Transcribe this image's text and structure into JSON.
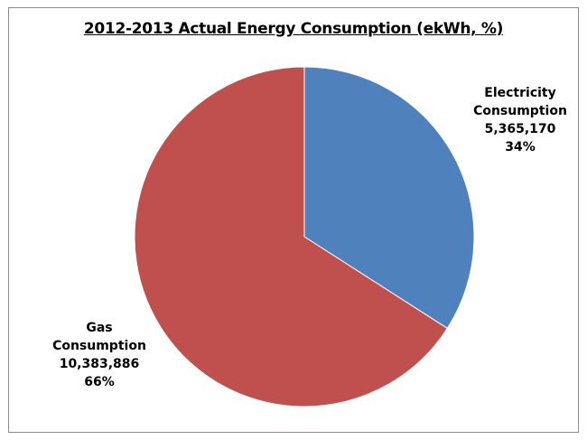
{
  "chart_data": {
    "type": "pie",
    "title": "2012-2013  Actual Energy Consumption (ekWh, %)",
    "slices": [
      {
        "name_line1": "Electricity",
        "name_line2": "Consumption",
        "value": 5365170,
        "value_label": "5,365,170",
        "percent_label": "34%",
        "color": "#4f81bd"
      },
      {
        "name_line1": "Gas",
        "name_line2": "Consumption",
        "value": 10383886,
        "value_label": "10,383,886",
        "percent_label": "66%",
        "color": "#c0504d"
      }
    ],
    "start_angle_deg": 0,
    "direction": "clockwise"
  }
}
